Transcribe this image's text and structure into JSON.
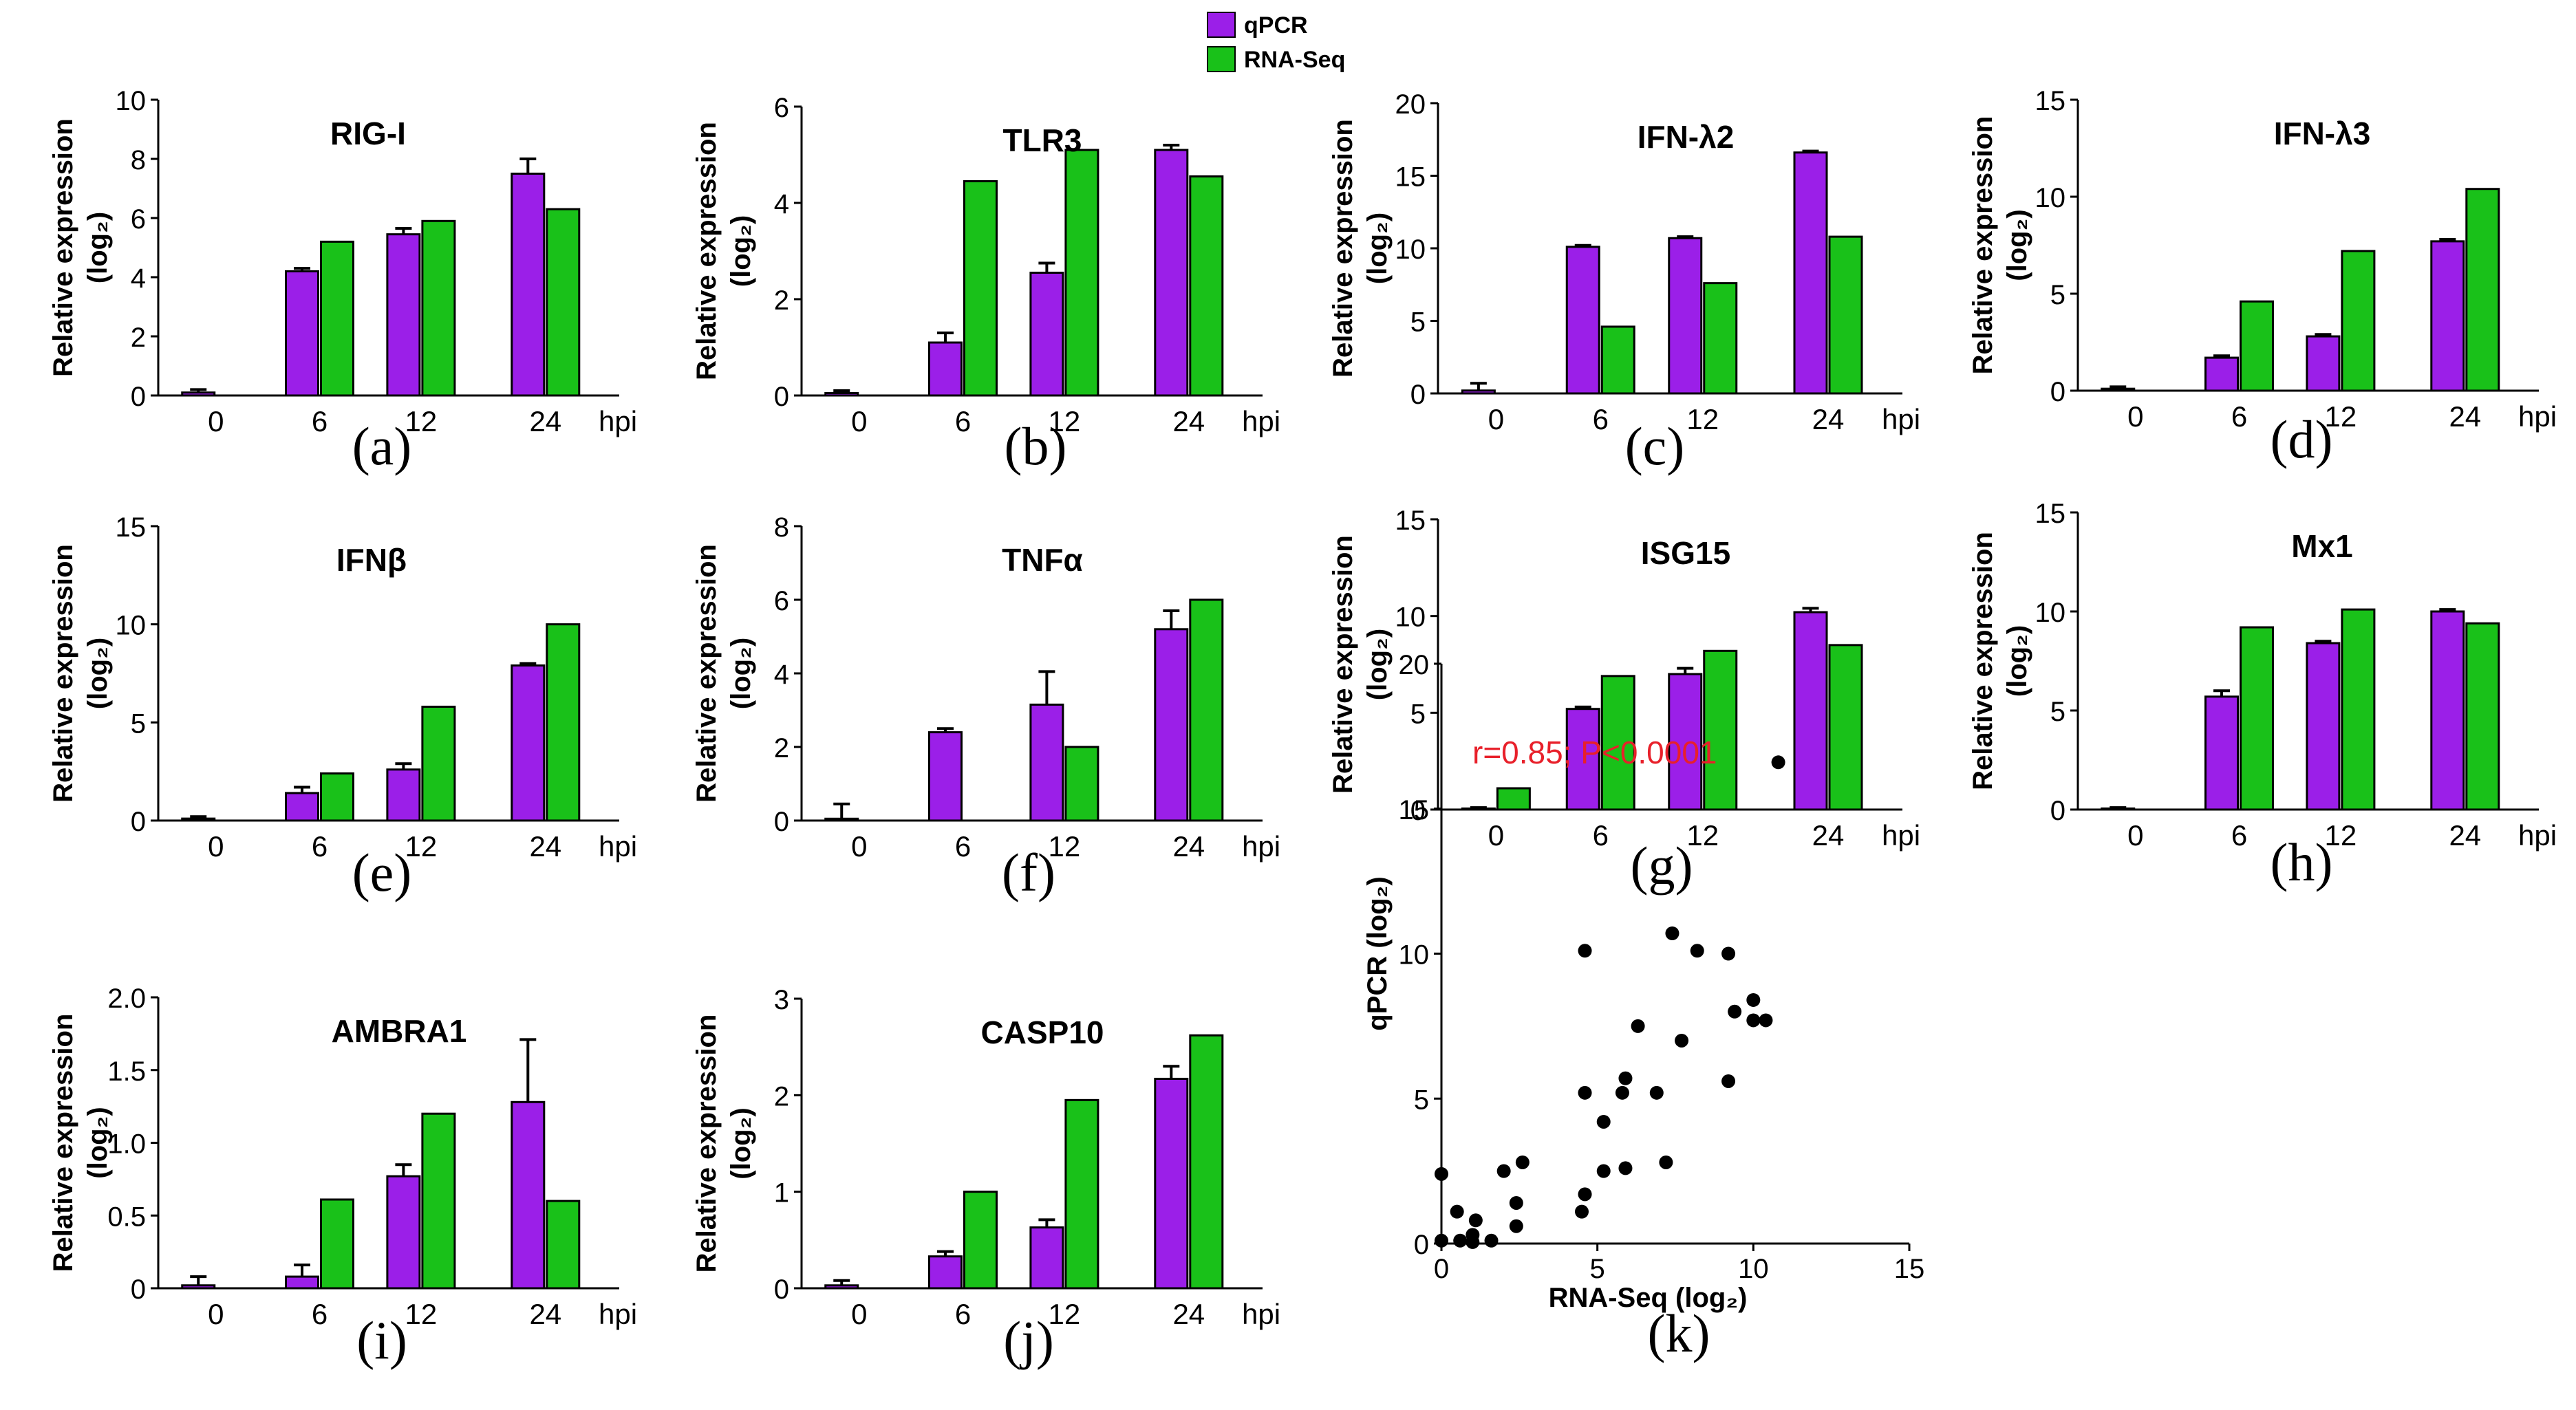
{
  "legend": {
    "entries": [
      {
        "label": "qPCR",
        "color": "#9b1fe8"
      },
      {
        "label": "RNA-Seq",
        "color": "#19c119"
      }
    ]
  },
  "colors": {
    "qpcr": "#9b1fe8",
    "rnaseq": "#19c119",
    "annotation": "#e8202a",
    "ink": "#000000"
  },
  "chart_data": [
    {
      "id": "a",
      "type": "bar",
      "title": "RIG-I",
      "letter": "(a)",
      "ylabel": "Relative expression",
      "ylabel2": "(log₂)",
      "xunit": "hpi",
      "categories": [
        "0",
        "6",
        "12",
        "24"
      ],
      "ylim": [
        0,
        10
      ],
      "yticks": [
        "0",
        "2",
        "4",
        "6",
        "8",
        "10"
      ],
      "series": [
        {
          "name": "qPCR",
          "values": [
            0.1,
            4.2,
            5.45,
            7.5
          ],
          "errors": [
            0.1,
            0.1,
            0.2,
            0.5
          ]
        },
        {
          "name": "RNA-Seq",
          "values": [
            0,
            5.2,
            5.9,
            6.3
          ]
        }
      ]
    },
    {
      "id": "b",
      "type": "bar",
      "title": "TLR3",
      "letter": "(b)",
      "ylabel": "Relative expression",
      "ylabel2": "(log₂)",
      "xunit": "hpi",
      "categories": [
        "0",
        "6",
        "12",
        "24"
      ],
      "ylim": [
        0,
        6
      ],
      "yticks": [
        "0",
        "2",
        "4",
        "6"
      ],
      "series": [
        {
          "name": "qPCR",
          "values": [
            0.05,
            1.1,
            2.55,
            5.1
          ],
          "errors": [
            0.05,
            0.2,
            0.2,
            0.1
          ]
        },
        {
          "name": "RNA-Seq",
          "values": [
            0,
            4.45,
            5.1,
            4.55
          ]
        }
      ]
    },
    {
      "id": "c",
      "type": "bar",
      "title": "IFN-λ2",
      "letter": "(c)",
      "ylabel": "Relative expression",
      "ylabel2": "(log₂)",
      "xunit": "hpi",
      "categories": [
        "0",
        "6",
        "12",
        "24"
      ],
      "ylim": [
        0,
        20
      ],
      "yticks": [
        "0",
        "5",
        "10",
        "15",
        "20"
      ],
      "series": [
        {
          "name": "qPCR",
          "values": [
            0.2,
            10.1,
            10.7,
            16.6
          ],
          "errors": [
            0.5,
            0.1,
            0.1,
            0.1
          ]
        },
        {
          "name": "RNA-Seq",
          "values": [
            0,
            4.6,
            7.6,
            10.8
          ]
        }
      ]
    },
    {
      "id": "d",
      "type": "bar",
      "title": "IFN-λ3",
      "letter": "(d)",
      "ylabel": "Relative expression",
      "ylabel2": "(log₂)",
      "xunit": "hpi",
      "categories": [
        "0",
        "6",
        "12",
        "24"
      ],
      "ylim": [
        0,
        15
      ],
      "yticks": [
        "0",
        "5",
        "10",
        "15"
      ],
      "series": [
        {
          "name": "qPCR",
          "values": [
            0.1,
            1.7,
            2.8,
            7.7
          ],
          "errors": [
            0.1,
            0.1,
            0.1,
            0.1
          ]
        },
        {
          "name": "RNA-Seq",
          "values": [
            0,
            4.6,
            7.2,
            10.4
          ]
        }
      ]
    },
    {
      "id": "e",
      "type": "bar",
      "title": "IFNβ",
      "letter": "(e)",
      "ylabel": "Relative expression",
      "ylabel2": "(log₂)",
      "xunit": "hpi",
      "categories": [
        "0",
        "6",
        "12",
        "24"
      ],
      "ylim": [
        0,
        15
      ],
      "yticks": [
        "0",
        "5",
        "10",
        "15"
      ],
      "series": [
        {
          "name": "qPCR",
          "values": [
            0.1,
            1.4,
            2.6,
            7.9
          ],
          "errors": [
            0.1,
            0.3,
            0.3,
            0.1
          ]
        },
        {
          "name": "RNA-Seq",
          "values": [
            0,
            2.4,
            5.8,
            10.0
          ]
        }
      ]
    },
    {
      "id": "f",
      "type": "bar",
      "title": "TNFα",
      "letter": "(f)",
      "ylabel": "Relative expression",
      "ylabel2": "(log₂)",
      "xunit": "hpi",
      "categories": [
        "0",
        "6",
        "12",
        "24"
      ],
      "ylim": [
        0,
        8
      ],
      "yticks": [
        "0",
        "2",
        "4",
        "6",
        "8"
      ],
      "series": [
        {
          "name": "qPCR",
          "values": [
            0.05,
            2.4,
            3.15,
            5.2
          ],
          "errors": [
            0.4,
            0.1,
            0.9,
            0.5
          ]
        },
        {
          "name": "RNA-Seq",
          "values": [
            0,
            0,
            2.0,
            6.0
          ]
        }
      ]
    },
    {
      "id": "g",
      "type": "bar",
      "title": "ISG15",
      "letter": "(g)",
      "ylabel": "Relative expression",
      "ylabel2": "(log₂)",
      "xunit": "hpi",
      "categories": [
        "0",
        "6",
        "12",
        "24"
      ],
      "ylim": [
        0,
        15
      ],
      "yticks": [
        "0",
        "5",
        "10",
        "15"
      ],
      "series": [
        {
          "name": "qPCR",
          "values": [
            0.05,
            5.2,
            7.0,
            10.2
          ],
          "errors": [
            0.05,
            0.1,
            0.3,
            0.2
          ]
        },
        {
          "name": "RNA-Seq",
          "values": [
            1.1,
            6.9,
            8.2,
            8.5
          ]
        }
      ]
    },
    {
      "id": "h",
      "type": "bar",
      "title": "Mx1",
      "letter": "(h)",
      "ylabel": "Relative expression",
      "ylabel2": "(log₂)",
      "xunit": "hpi",
      "categories": [
        "0",
        "6",
        "12",
        "24"
      ],
      "ylim": [
        0,
        15
      ],
      "yticks": [
        "0",
        "5",
        "10",
        "15"
      ],
      "series": [
        {
          "name": "qPCR",
          "values": [
            0.05,
            5.7,
            8.4,
            10.0
          ],
          "errors": [
            0.05,
            0.3,
            0.1,
            0.1
          ]
        },
        {
          "name": "RNA-Seq",
          "values": [
            0,
            9.2,
            10.1,
            9.4
          ]
        }
      ]
    },
    {
      "id": "i",
      "type": "bar",
      "title": "AMBRA1",
      "letter": "(i)",
      "ylabel": "Relative expression",
      "ylabel2": "(log₂)",
      "xunit": "hpi",
      "categories": [
        "0",
        "6",
        "12",
        "24"
      ],
      "ylim": [
        0,
        2.0
      ],
      "yticks": [
        "0",
        "0.5",
        "1.0",
        "1.5",
        "2.0"
      ],
      "series": [
        {
          "name": "qPCR",
          "values": [
            0.02,
            0.08,
            0.77,
            1.28
          ],
          "errors": [
            0.06,
            0.08,
            0.08,
            0.43
          ]
        },
        {
          "name": "RNA-Seq",
          "values": [
            0,
            0.61,
            1.2,
            0.6
          ]
        }
      ]
    },
    {
      "id": "j",
      "type": "bar",
      "title": "CASP10",
      "letter": "(j)",
      "ylabel": "Relative expression",
      "ylabel2": "(log₂)",
      "xunit": "hpi",
      "categories": [
        "0",
        "6",
        "12",
        "24"
      ],
      "ylim": [
        0,
        3
      ],
      "yticks": [
        "0",
        "1",
        "2",
        "3"
      ],
      "series": [
        {
          "name": "qPCR",
          "values": [
            0.03,
            0.33,
            0.63,
            2.17
          ],
          "errors": [
            0.05,
            0.05,
            0.08,
            0.13
          ]
        },
        {
          "name": "RNA-Seq",
          "values": [
            0,
            1.0,
            1.95,
            2.62
          ]
        }
      ]
    },
    {
      "id": "k",
      "type": "scatter",
      "letter": "(k)",
      "xlabel": "RNA-Seq (log₂)",
      "ylabel": "qPCR (log₂)",
      "annotation": "r=0.85; P<0.0001",
      "xlim": [
        0,
        15
      ],
      "ylim": [
        0,
        20
      ],
      "xticks": [
        "0",
        "5",
        "10",
        "15"
      ],
      "yticks": [
        "0",
        "5",
        "10",
        "15",
        "20"
      ],
      "points": [
        [
          0,
          0.1
        ],
        [
          0,
          2.4
        ],
        [
          0.5,
          1.1
        ],
        [
          0.6,
          0.1
        ],
        [
          1.0,
          0.05
        ],
        [
          1.0,
          0.3
        ],
        [
          1.1,
          0.8
        ],
        [
          1.6,
          0.1
        ],
        [
          2.0,
          2.5
        ],
        [
          2.4,
          0.6
        ],
        [
          2.4,
          1.4
        ],
        [
          2.6,
          2.8
        ],
        [
          4.5,
          1.1
        ],
        [
          4.6,
          10.1
        ],
        [
          4.6,
          5.2
        ],
        [
          4.6,
          1.7
        ],
        [
          5.2,
          2.5
        ],
        [
          5.2,
          4.2
        ],
        [
          5.8,
          5.2
        ],
        [
          5.9,
          2.6
        ],
        [
          5.9,
          5.7
        ],
        [
          6.3,
          7.5
        ],
        [
          6.9,
          5.2
        ],
        [
          7.2,
          2.8
        ],
        [
          7.4,
          10.7
        ],
        [
          7.7,
          7.0
        ],
        [
          8.2,
          10.1
        ],
        [
          9.2,
          5.6
        ],
        [
          9.2,
          10.0
        ],
        [
          9.4,
          8.0
        ],
        [
          10.0,
          7.7
        ],
        [
          10.0,
          8.4
        ],
        [
          10.4,
          7.7
        ],
        [
          10.8,
          16.6
        ]
      ]
    }
  ]
}
